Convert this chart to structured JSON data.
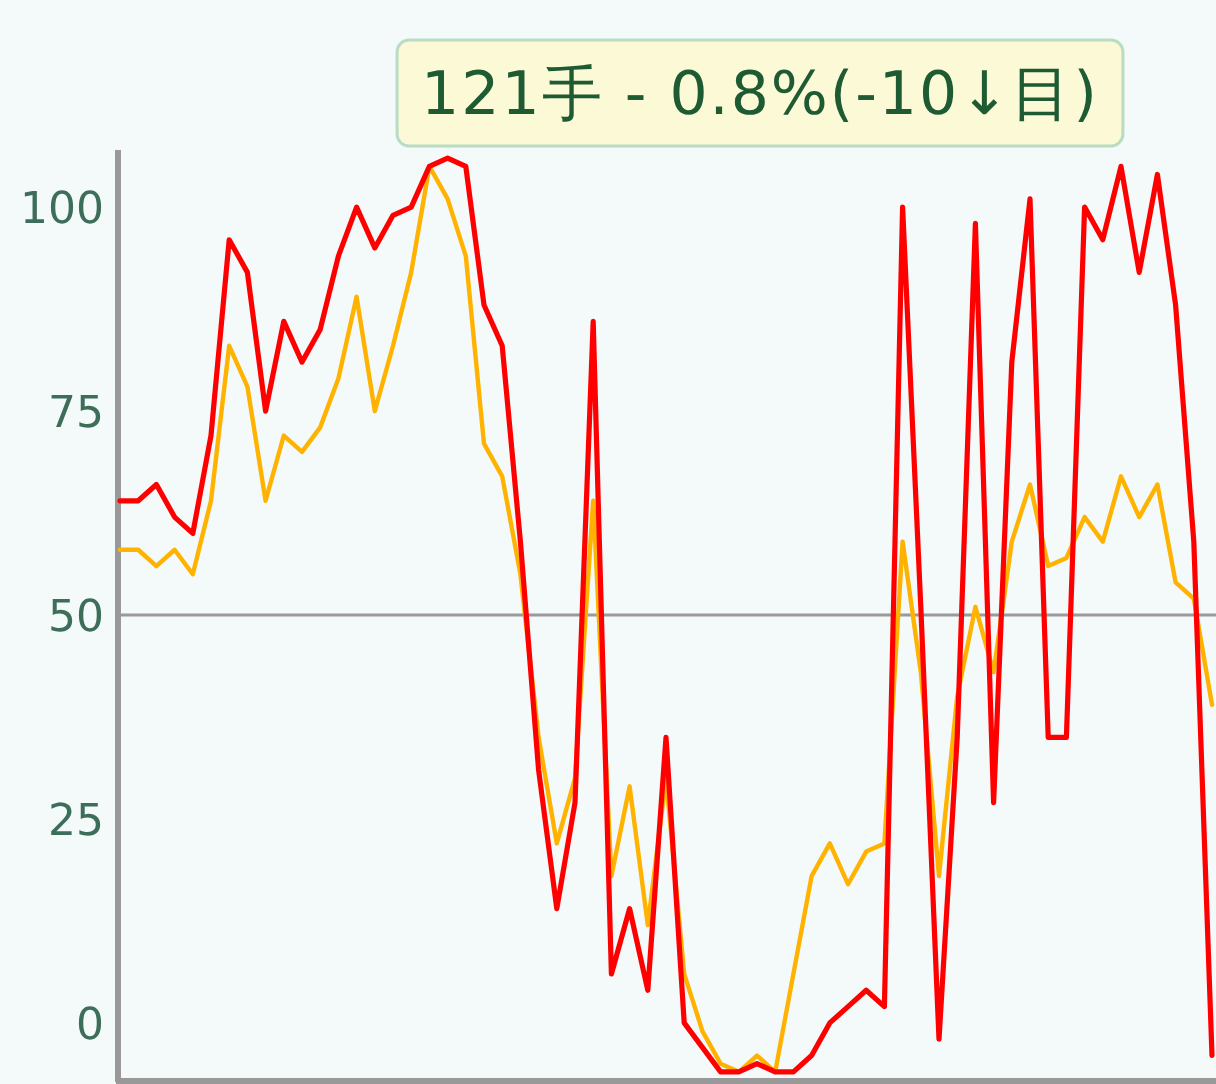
{
  "chart_data": {
    "type": "line",
    "title": "121手 - 0.8%(-10↓目)",
    "categories": [
      null,
      null,
      null,
      null,
      null,
      null,
      null,
      null,
      null,
      null,
      null,
      null,
      null,
      null,
      null,
      null,
      null,
      null,
      null,
      null,
      null,
      null,
      null,
      null,
      null,
      null,
      null,
      null,
      null,
      null,
      null,
      null,
      null,
      null,
      null,
      null,
      null,
      null,
      null,
      null,
      null,
      null,
      null,
      null,
      null,
      null,
      null,
      null,
      null,
      null,
      null,
      null,
      null,
      null,
      null,
      null,
      null,
      null,
      null,
      null,
      null
    ],
    "series": [
      {
        "color": "#ff0000",
        "values": [
          64,
          64,
          66,
          62,
          60,
          72,
          96,
          92,
          75,
          86,
          81,
          85,
          94,
          100,
          95,
          99,
          100,
          105,
          106,
          105,
          88,
          83,
          59,
          31,
          14,
          27,
          86,
          6,
          14,
          4,
          35,
          0,
          -3,
          -6,
          -6,
          -5,
          -6,
          -6,
          -4,
          0,
          2,
          4,
          2,
          100,
          51,
          -2,
          35,
          98,
          27,
          81,
          101,
          35,
          35,
          100,
          96,
          105,
          92,
          104,
          88,
          59,
          -4
        ]
      },
      {
        "color": "#ffb300",
        "values": [
          58,
          58,
          56,
          58,
          55,
          64,
          83,
          78,
          64,
          72,
          70,
          73,
          79,
          89,
          75,
          83,
          92,
          105,
          101,
          94,
          71,
          67,
          55,
          35,
          22,
          30,
          64,
          18,
          29,
          12,
          30,
          6,
          -1,
          -5,
          -6,
          -4,
          -6,
          6,
          18,
          22,
          17,
          21,
          22,
          59,
          43,
          18,
          40,
          51,
          43,
          59,
          66,
          56,
          57,
          62,
          59,
          67,
          62,
          66,
          54,
          52,
          39
        ]
      }
    ],
    "ylim": [
      -7,
      107
    ],
    "yticks": [
      0,
      25,
      50,
      75,
      100
    ],
    "tick_labels": "y",
    "ref_lines": [
      {
        "axis": "y",
        "value": 50,
        "color": "#9a9a9a"
      }
    ]
  }
}
